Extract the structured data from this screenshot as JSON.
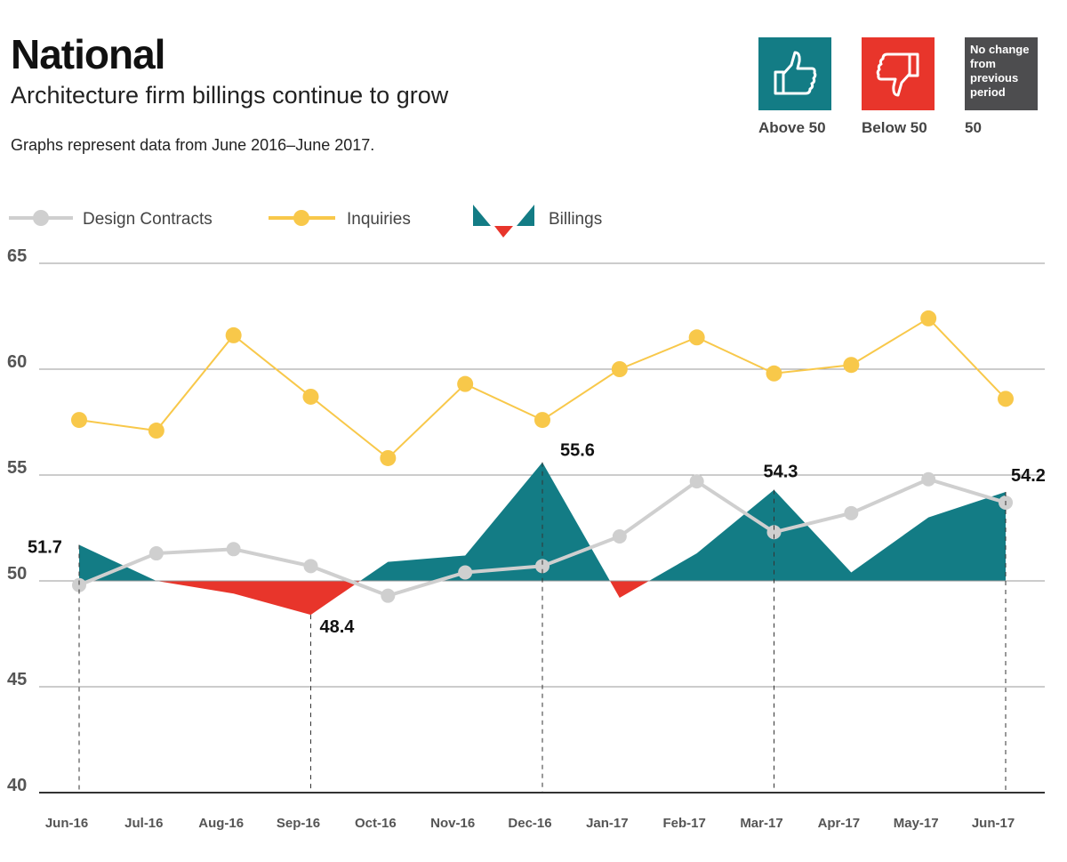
{
  "header": {
    "title": "National",
    "subtitle": "Architecture firm billings continue to grow",
    "note": "Graphs represent data from June 2016–June 2017."
  },
  "key": {
    "above": {
      "label": "Above 50",
      "icon": "thumbs-up-icon",
      "color": "#137c85"
    },
    "below": {
      "label": "Below 50",
      "icon": "thumbs-down-icon",
      "color": "#e8352b"
    },
    "nochange": {
      "box_text": "No change from previous period",
      "label": "50",
      "color": "#4d4d4f"
    }
  },
  "chart_data": {
    "type": "line",
    "categories": [
      "Jun-16",
      "Jul-16",
      "Aug-16",
      "Sep-16",
      "Oct-16",
      "Nov-16",
      "Dec-16",
      "Jan-17",
      "Feb-17",
      "Mar-17",
      "Apr-17",
      "May-17",
      "Jun-17"
    ],
    "ylim": [
      40,
      65
    ],
    "yticks": [
      40,
      45,
      50,
      55,
      60,
      65
    ],
    "baseline": 50,
    "grid": true,
    "legend_position": "top-left",
    "series": [
      {
        "name": "Design Contracts",
        "type": "line",
        "color": "#cfcfcf",
        "values": [
          49.8,
          51.3,
          51.5,
          50.7,
          49.3,
          50.4,
          50.7,
          52.1,
          54.7,
          52.3,
          53.2,
          54.8,
          53.7
        ]
      },
      {
        "name": "Inquiries",
        "type": "line",
        "color": "#f8c84a",
        "values": [
          57.6,
          57.1,
          61.6,
          58.7,
          55.8,
          59.3,
          57.6,
          60.0,
          61.5,
          59.8,
          60.2,
          62.4,
          58.6
        ]
      },
      {
        "name": "Billings",
        "type": "area",
        "color_above": "#137c85",
        "color_below": "#e8352b",
        "values": [
          51.7,
          50.0,
          49.4,
          48.4,
          50.9,
          51.2,
          55.6,
          49.2,
          51.3,
          54.3,
          50.4,
          53.0,
          54.2
        ]
      }
    ],
    "annotations": [
      {
        "category": "Jun-16",
        "text": "51.7"
      },
      {
        "category": "Sep-16",
        "text": "48.4"
      },
      {
        "category": "Dec-16",
        "text": "55.6"
      },
      {
        "category": "Mar-17",
        "text": "54.3"
      },
      {
        "category": "Jun-17",
        "text": "54.2"
      }
    ]
  }
}
